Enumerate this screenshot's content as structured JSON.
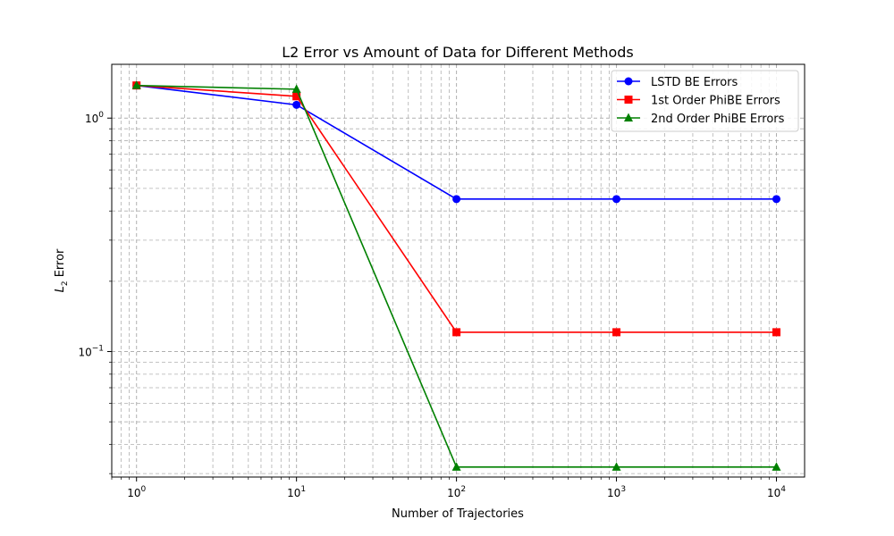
{
  "chart_data": {
    "type": "line",
    "title": "L2 Error vs Amount of Data for Different Methods",
    "xlabel": "Number of Trajectories",
    "ylabel_main": "L",
    "ylabel_sub": "2",
    "ylabel_rest": " Error",
    "xscale": "log",
    "yscale": "log",
    "xlim": [
      0.7,
      15000
    ],
    "ylim": [
      0.029,
      1.7
    ],
    "grid": true,
    "legend_position": "top-right",
    "x": [
      1,
      10,
      100,
      1000,
      10000
    ],
    "x_ticks": [
      {
        "value": 1,
        "base": "10",
        "exp": "0"
      },
      {
        "value": 10,
        "base": "10",
        "exp": "1"
      },
      {
        "value": 100,
        "base": "10",
        "exp": "2"
      },
      {
        "value": 1000,
        "base": "10",
        "exp": "3"
      },
      {
        "value": 10000,
        "base": "10",
        "exp": "4"
      }
    ],
    "y_ticks": [
      {
        "value": 1,
        "base": "10",
        "exp": "0"
      },
      {
        "value": 0.1,
        "base": "10",
        "exp": "−1"
      }
    ],
    "series": [
      {
        "name": "LSTD BE Errors",
        "color": "#0000ff",
        "marker": "circle",
        "values": [
          1.38,
          1.14,
          0.45,
          0.45,
          0.45
        ]
      },
      {
        "name": "1st Order PhiBE Errors",
        "color": "#ff0000",
        "marker": "square",
        "values": [
          1.38,
          1.24,
          0.121,
          0.121,
          0.121
        ]
      },
      {
        "name": "2nd Order PhiBE Errors",
        "color": "#008000",
        "marker": "triangle",
        "values": [
          1.38,
          1.33,
          0.032,
          0.032,
          0.032
        ]
      }
    ]
  }
}
